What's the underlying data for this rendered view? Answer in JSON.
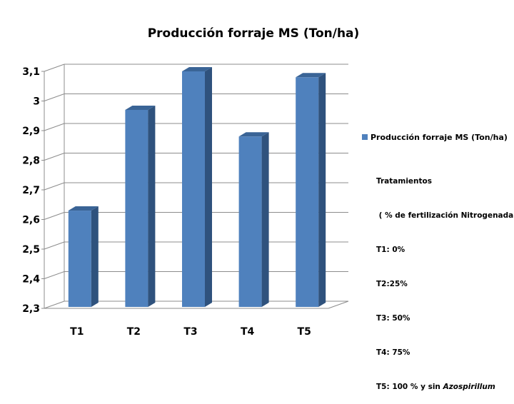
{
  "chart_data": {
    "type": "bar",
    "title": "Producción forraje MS (Ton/ha)",
    "categories": [
      "T1",
      "T2",
      "T3",
      "T4",
      "T5"
    ],
    "series": [
      {
        "name": "Producción forraje MS (Ton/ha)",
        "values": [
          2.63,
          2.97,
          3.1,
          2.88,
          3.08
        ]
      }
    ],
    "ylim": [
      2.3,
      3.1
    ],
    "yticks": [
      2.3,
      2.4,
      2.5,
      2.6,
      2.7,
      2.8,
      2.9,
      3.0,
      3.1
    ],
    "ytick_labels": [
      "2,3",
      "2,4",
      "2,5",
      "2,6",
      "2,7",
      "2,8",
      "2,9",
      "3",
      "3,1"
    ],
    "grid": true,
    "legend_position": "right",
    "bar_color": "#4f81bd",
    "bar_side_color": "#2f527d",
    "bar_top_color": "#3a6496"
  },
  "annotation": {
    "lines": [
      "Tratamientos",
      " ( % de fertilización Nitrogenada)",
      "T1: 0%",
      "T2:25%",
      "T3: 50%",
      "T4: 75%"
    ],
    "last_line_prefix": "T5: 100 % y sin ",
    "last_line_italic": "Azospirillum"
  }
}
